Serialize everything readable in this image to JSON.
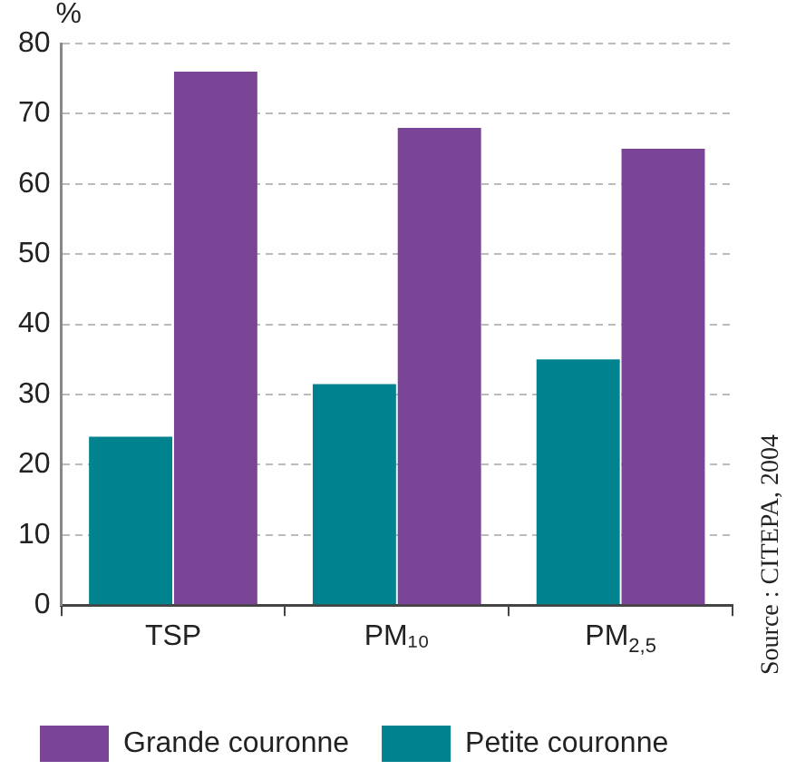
{
  "chart_data": {
    "type": "bar",
    "ylabel": "%",
    "categories": [
      "TSP",
      "PM₁₀",
      "PM$_{2,5}$"
    ],
    "series": [
      {
        "name": "Petite couronne",
        "color": "#00838f",
        "values": [
          24,
          31.5,
          35
        ]
      },
      {
        "name": "Grande couronne",
        "color": "#7b4597",
        "values": [
          76,
          68,
          65
        ]
      }
    ],
    "ylim": [
      0,
      80
    ],
    "yticks": [
      0,
      10,
      20,
      30,
      40,
      50,
      60,
      70,
      80
    ],
    "grid": "y",
    "legend": "bottom",
    "annotations": [
      "Source : CITEPA, 2004"
    ]
  }
}
